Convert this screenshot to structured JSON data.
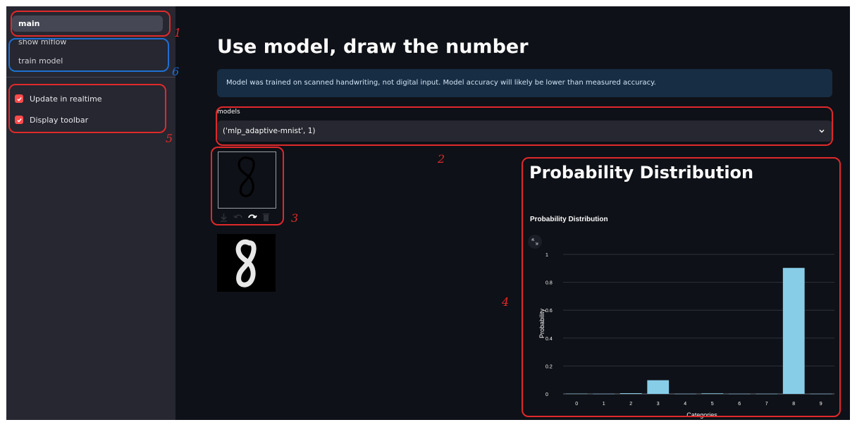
{
  "sidebar": {
    "nav": [
      {
        "label": "main",
        "active": true
      },
      {
        "label": "show mlflow",
        "active": false
      },
      {
        "label": "train model",
        "active": false
      }
    ],
    "options": [
      {
        "label": "Update in realtime",
        "checked": true
      },
      {
        "label": "Display toolbar",
        "checked": true
      }
    ]
  },
  "main": {
    "title": "Use model, draw the number",
    "info": "Model was trained on scanned handwriting, not digital input. Model accuracy will likely be lower than measured accuracy.",
    "select_label": "models",
    "select_value": "('mlp_adaptive-mnist', 1)",
    "chart_heading": "Probability Distribution"
  },
  "annotations": [
    "1",
    "6",
    "5",
    "2",
    "3",
    "4"
  ],
  "chart_data": {
    "type": "bar",
    "title": "Probability Distribution",
    "xlabel": "Categories",
    "ylabel": "Probability",
    "categories": [
      "0",
      "1",
      "2",
      "3",
      "4",
      "5",
      "6",
      "7",
      "8",
      "9"
    ],
    "values": [
      0.002,
      0.001,
      0.005,
      0.098,
      0.001,
      0.004,
      0.001,
      0.001,
      0.903,
      0.001
    ],
    "yticks": [
      "0",
      "0.2",
      "0.4",
      "0.6",
      "0.8",
      "1"
    ],
    "ylim": [
      0,
      1
    ],
    "color": "#87cde8",
    "grid": true
  },
  "colors": {
    "accent": "#ff4b4b",
    "background": "#0e1117",
    "sidebar": "#262730",
    "annotation": "#e0292b",
    "annotation_blue": "#1f6fd1"
  }
}
